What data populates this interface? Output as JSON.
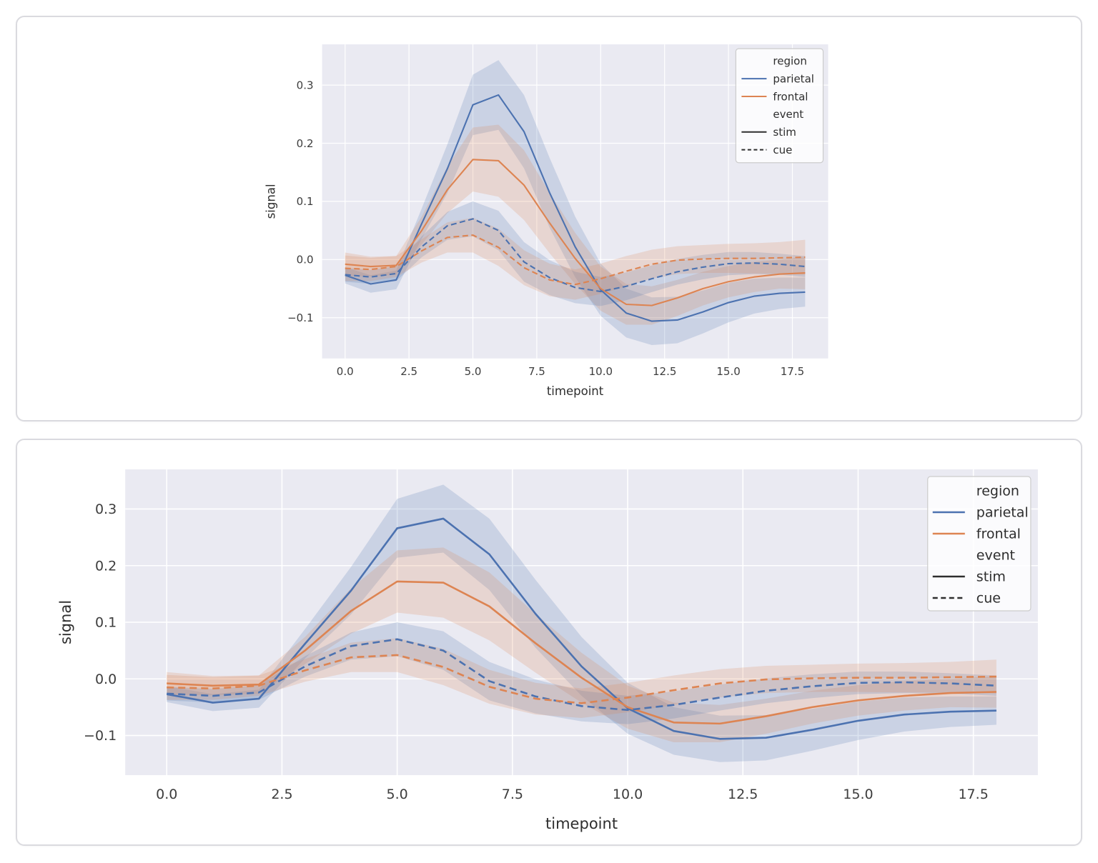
{
  "page": {
    "background": "#ffffff",
    "panels": [
      "fmri-chart-small",
      "fmri-chart-large"
    ]
  },
  "colors": {
    "parietal": "#4c72b0",
    "frontal": "#dd8452",
    "event_swatch": "#2e2e2e",
    "axes_background": "#eaeaf2",
    "grid_line": "#ffffff",
    "tick_text": "#3d3d3d",
    "label_text": "#2e2e2e",
    "legend_background": "rgba(255,255,255,0.8)",
    "legend_border": "#cccccc",
    "card_border": "#dadadf"
  },
  "chart_data": [
    {
      "type": "line",
      "title": "",
      "xlabel": "timepoint",
      "ylabel": "signal",
      "xlim": [
        -0.9,
        18.9
      ],
      "ylim": [
        -0.17,
        0.37
      ],
      "grid": true,
      "legend_position": "upper right",
      "xtick_values": [
        0,
        2.5,
        5,
        7.5,
        10,
        12.5,
        15,
        17.5
      ],
      "xtick_labels": [
        "0.0",
        "2.5",
        "5.0",
        "7.5",
        "10.0",
        "12.5",
        "15.0",
        "17.5"
      ],
      "ytick_values": [
        -0.1,
        0.0,
        0.1,
        0.2,
        0.3
      ],
      "ytick_labels": [
        "−0.1",
        "0.0",
        "0.1",
        "0.2",
        "0.3"
      ],
      "x": [
        0,
        1,
        2,
        3,
        4,
        5,
        6,
        7,
        8,
        9,
        10,
        11,
        12,
        13,
        14,
        15,
        16,
        17,
        18
      ],
      "legend": {
        "entries": [
          {
            "label": "region",
            "swatch": "none",
            "color": null
          },
          {
            "label": "parietal",
            "swatch": "solid",
            "color": "#4c72b0"
          },
          {
            "label": "frontal",
            "swatch": "solid",
            "color": "#dd8452"
          },
          {
            "label": "event",
            "swatch": "none",
            "color": null
          },
          {
            "label": "stim",
            "swatch": "solid",
            "color": "#2e2e2e"
          },
          {
            "label": "cue",
            "swatch": "dashed",
            "color": "#2e2e2e"
          }
        ]
      },
      "series": [
        {
          "name": "parietal-stim",
          "region": "parietal",
          "event": "stim",
          "color": "#4c72b0",
          "style": "solid",
          "values": [
            -0.027,
            -0.042,
            -0.035,
            0.062,
            0.156,
            0.266,
            0.283,
            0.22,
            0.115,
            0.022,
            -0.052,
            -0.092,
            -0.106,
            -0.104,
            -0.09,
            -0.074,
            -0.063,
            -0.058,
            -0.056
          ],
          "ci": [
            0.014,
            0.015,
            0.016,
            0.026,
            0.042,
            0.052,
            0.06,
            0.063,
            0.06,
            0.052,
            0.045,
            0.042,
            0.041,
            0.04,
            0.037,
            0.034,
            0.03,
            0.027,
            0.025
          ]
        },
        {
          "name": "frontal-stim",
          "region": "frontal",
          "event": "stim",
          "color": "#dd8452",
          "style": "solid",
          "values": [
            -0.008,
            -0.012,
            -0.01,
            0.05,
            0.12,
            0.172,
            0.17,
            0.128,
            0.063,
            0.002,
            -0.05,
            -0.077,
            -0.079,
            -0.066,
            -0.05,
            -0.038,
            -0.03,
            -0.025,
            -0.023
          ],
          "ci": [
            0.02,
            0.017,
            0.016,
            0.024,
            0.04,
            0.055,
            0.062,
            0.06,
            0.052,
            0.044,
            0.038,
            0.035,
            0.033,
            0.031,
            0.029,
            0.027,
            0.026,
            0.025,
            0.028
          ]
        },
        {
          "name": "parietal-cue",
          "region": "parietal",
          "event": "cue",
          "color": "#4c72b0",
          "style": "dashed",
          "values": [
            -0.026,
            -0.03,
            -0.024,
            0.022,
            0.058,
            0.07,
            0.05,
            -0.004,
            -0.031,
            -0.048,
            -0.055,
            -0.046,
            -0.033,
            -0.021,
            -0.013,
            -0.007,
            -0.006,
            -0.008,
            -0.012
          ],
          "ci": [
            0.012,
            0.012,
            0.013,
            0.018,
            0.024,
            0.03,
            0.034,
            0.034,
            0.03,
            0.027,
            0.025,
            0.024,
            0.023,
            0.022,
            0.021,
            0.02,
            0.019,
            0.018,
            0.018
          ]
        },
        {
          "name": "frontal-cue",
          "region": "frontal",
          "event": "cue",
          "color": "#dd8452",
          "style": "dashed",
          "values": [
            -0.015,
            -0.017,
            -0.012,
            0.015,
            0.038,
            0.042,
            0.021,
            -0.014,
            -0.035,
            -0.043,
            -0.033,
            -0.02,
            -0.008,
            -0.001,
            0.001,
            0.002,
            0.002,
            0.003,
            0.004
          ],
          "ci": [
            0.022,
            0.02,
            0.018,
            0.02,
            0.026,
            0.03,
            0.032,
            0.03,
            0.028,
            0.026,
            0.026,
            0.026,
            0.025,
            0.024,
            0.024,
            0.025,
            0.026,
            0.027,
            0.03
          ]
        }
      ]
    },
    {
      "type": "line",
      "title": "",
      "xlabel": "timepoint",
      "ylabel": "signal",
      "xlim": [
        -0.9,
        18.9
      ],
      "ylim": [
        -0.17,
        0.37
      ],
      "grid": true,
      "legend_position": "upper right",
      "xtick_values": [
        0,
        2.5,
        5,
        7.5,
        10,
        12.5,
        15,
        17.5
      ],
      "xtick_labels": [
        "0.0",
        "2.5",
        "5.0",
        "7.5",
        "10.0",
        "12.5",
        "15.0",
        "17.5"
      ],
      "ytick_values": [
        -0.1,
        0.0,
        0.1,
        0.2,
        0.3
      ],
      "ytick_labels": [
        "−0.1",
        "0.0",
        "0.1",
        "0.2",
        "0.3"
      ],
      "x": [
        0,
        1,
        2,
        3,
        4,
        5,
        6,
        7,
        8,
        9,
        10,
        11,
        12,
        13,
        14,
        15,
        16,
        17,
        18
      ],
      "legend": {
        "entries": [
          {
            "label": "region",
            "swatch": "none",
            "color": null
          },
          {
            "label": "parietal",
            "swatch": "solid",
            "color": "#4c72b0"
          },
          {
            "label": "frontal",
            "swatch": "solid",
            "color": "#dd8452"
          },
          {
            "label": "event",
            "swatch": "none",
            "color": null
          },
          {
            "label": "stim",
            "swatch": "solid",
            "color": "#2e2e2e"
          },
          {
            "label": "cue",
            "swatch": "dashed",
            "color": "#2e2e2e"
          }
        ]
      },
      "series": [
        {
          "name": "parietal-stim",
          "region": "parietal",
          "event": "stim",
          "color": "#4c72b0",
          "style": "solid",
          "values": [
            -0.027,
            -0.042,
            -0.035,
            0.062,
            0.156,
            0.266,
            0.283,
            0.22,
            0.115,
            0.022,
            -0.052,
            -0.092,
            -0.106,
            -0.104,
            -0.09,
            -0.074,
            -0.063,
            -0.058,
            -0.056
          ],
          "ci": [
            0.014,
            0.015,
            0.016,
            0.026,
            0.042,
            0.052,
            0.06,
            0.063,
            0.06,
            0.052,
            0.045,
            0.042,
            0.041,
            0.04,
            0.037,
            0.034,
            0.03,
            0.027,
            0.025
          ]
        },
        {
          "name": "frontal-stim",
          "region": "frontal",
          "event": "stim",
          "color": "#dd8452",
          "style": "solid",
          "values": [
            -0.008,
            -0.012,
            -0.01,
            0.05,
            0.12,
            0.172,
            0.17,
            0.128,
            0.063,
            0.002,
            -0.05,
            -0.077,
            -0.079,
            -0.066,
            -0.05,
            -0.038,
            -0.03,
            -0.025,
            -0.023
          ],
          "ci": [
            0.02,
            0.017,
            0.016,
            0.024,
            0.04,
            0.055,
            0.062,
            0.06,
            0.052,
            0.044,
            0.038,
            0.035,
            0.033,
            0.031,
            0.029,
            0.027,
            0.026,
            0.025,
            0.028
          ]
        },
        {
          "name": "parietal-cue",
          "region": "parietal",
          "event": "cue",
          "color": "#4c72b0",
          "style": "dashed",
          "values": [
            -0.026,
            -0.03,
            -0.024,
            0.022,
            0.058,
            0.07,
            0.05,
            -0.004,
            -0.031,
            -0.048,
            -0.055,
            -0.046,
            -0.033,
            -0.021,
            -0.013,
            -0.007,
            -0.006,
            -0.008,
            -0.012
          ],
          "ci": [
            0.012,
            0.012,
            0.013,
            0.018,
            0.024,
            0.03,
            0.034,
            0.034,
            0.03,
            0.027,
            0.025,
            0.024,
            0.023,
            0.022,
            0.021,
            0.02,
            0.019,
            0.018,
            0.018
          ]
        },
        {
          "name": "frontal-cue",
          "region": "frontal",
          "event": "cue",
          "color": "#dd8452",
          "style": "dashed",
          "values": [
            -0.015,
            -0.017,
            -0.012,
            0.015,
            0.038,
            0.042,
            0.021,
            -0.014,
            -0.035,
            -0.043,
            -0.033,
            -0.02,
            -0.008,
            -0.001,
            0.001,
            0.002,
            0.002,
            0.003,
            0.004
          ],
          "ci": [
            0.022,
            0.02,
            0.018,
            0.02,
            0.026,
            0.03,
            0.032,
            0.03,
            0.028,
            0.026,
            0.026,
            0.026,
            0.025,
            0.024,
            0.024,
            0.025,
            0.026,
            0.027,
            0.03
          ]
        }
      ]
    }
  ]
}
